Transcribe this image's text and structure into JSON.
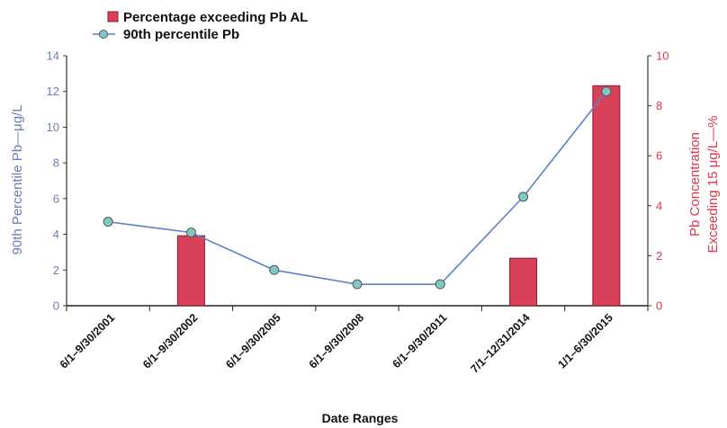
{
  "chart_data": {
    "type": "bar",
    "categories": [
      "6/1–9/30/2001",
      "6/1–9/30/2002",
      "6/1–9/30/2005",
      "6/1–9/30/2008",
      "6/1–9/30/2011",
      "7/1–12/31/2014",
      "1/1–6/30/2015"
    ],
    "series": [
      {
        "name": "Percentage exceeding Pb AL",
        "type": "bar",
        "axis": "right",
        "values": [
          0,
          2.8,
          0,
          0,
          0,
          1.9,
          8.8
        ],
        "color": "#d9405a"
      },
      {
        "name": "90th percentile Pb",
        "type": "line",
        "axis": "left",
        "values": [
          4.7,
          4.1,
          2.0,
          1.2,
          1.2,
          6.1,
          12.0
        ],
        "color": "#5b82c7",
        "marker_color": "#7fc8c4"
      }
    ],
    "xlabel": "Date Ranges",
    "ylabel_left": "90th Percentile Pb—μg/L",
    "ylabel_right_line1": "Pb Concentration",
    "ylabel_right_line2": "Exceeding 15 μg/L—%",
    "ylim_left": [
      0,
      14
    ],
    "yticks_left": [
      "0",
      "2",
      "4",
      "6",
      "8",
      "10",
      "12",
      "14"
    ],
    "ylim_right": [
      0,
      10
    ],
    "yticks_right": [
      "0",
      "2",
      "4",
      "6",
      "8",
      "10"
    ],
    "grid": false,
    "legend": "top-left",
    "colors": {
      "left_axis": "#6b7fb8",
      "right_axis": "#e0354b",
      "axis_line": "#222222"
    }
  }
}
